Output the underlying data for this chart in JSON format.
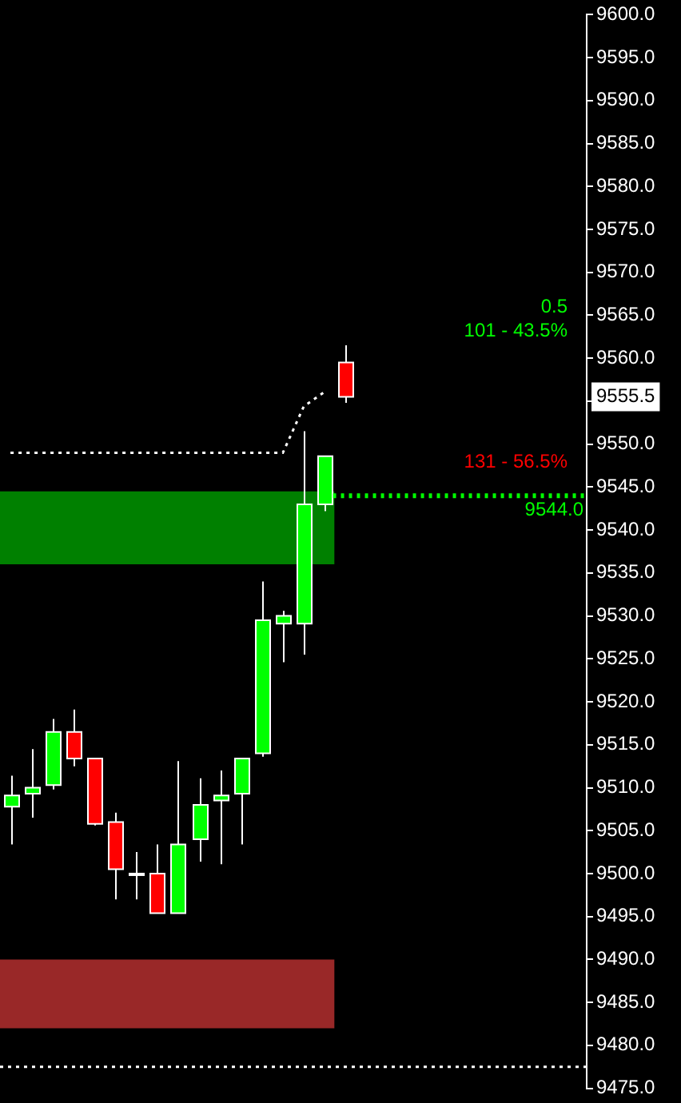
{
  "chart_data": {
    "type": "candlestick",
    "categories": [
      null,
      null,
      null,
      null,
      null,
      null,
      null,
      null,
      null,
      null,
      null,
      null,
      null,
      null,
      null,
      null,
      null,
      null,
      null,
      null,
      null,
      null,
      null,
      null,
      null,
      null,
      null,
      null
    ],
    "ohlc": [
      [
        9507.8,
        9511.4,
        9503.4,
        9509.1
      ],
      [
        9509.3,
        9514.5,
        9506.5,
        9510.0
      ],
      [
        9510.3,
        9518.0,
        9509.8,
        9516.5
      ],
      [
        9516.5,
        9519.1,
        9512.5,
        9513.4
      ],
      [
        9513.4,
        9513.4,
        9505.6,
        9505.8
      ],
      [
        9506.0,
        9507.1,
        9497.0,
        9500.5
      ],
      [
        9500.0,
        9502.5,
        9497.0,
        9500.0
      ],
      [
        9500.0,
        9503.4,
        9495.4,
        9495.4
      ],
      [
        9495.4,
        9513.1,
        9495.4,
        9503.4
      ],
      [
        9504.0,
        9511.1,
        9501.4,
        9508.0
      ],
      [
        9508.5,
        9512.0,
        9501.1,
        9509.1
      ],
      [
        9509.3,
        9513.4,
        9503.4,
        9513.4
      ],
      [
        9514.0,
        9534.0,
        9513.6,
        9529.5
      ],
      [
        9529.1,
        9530.6,
        9524.6,
        9530.0
      ],
      [
        9529.1,
        9551.5,
        9525.5,
        9543.0
      ],
      [
        9543.0,
        9548.6,
        9542.2,
        9548.6
      ],
      [
        9559.5,
        9561.5,
        9554.8,
        9555.5
      ],
      null,
      null,
      null,
      null,
      null,
      null,
      null,
      null,
      null,
      null,
      null
    ],
    "colors": [
      "#00ff00",
      "#00ff00",
      "#00ff00",
      "#ff0000",
      "#ff0000",
      "#ff0000",
      "#ffffff",
      "#ff0000",
      "#00ff00",
      "#00ff00",
      "#00ff00",
      "#00ff00",
      "#00ff00",
      "#00ff00",
      "#00ff00",
      "#00ff00",
      "#ff0000",
      null,
      null,
      null,
      null,
      null,
      null,
      null,
      null,
      null,
      null,
      null
    ],
    "series": [
      {
        "type": "line",
        "color": "#ffffff",
        "line_style": "dotted",
        "values": [
          9549,
          9549,
          9549,
          9549,
          9549,
          9549,
          9549,
          9549,
          9549,
          9549,
          9549,
          9549,
          9549,
          9549,
          9554.4,
          9556.1,
          null,
          null,
          null,
          null,
          null,
          null,
          null,
          null,
          null,
          null,
          null,
          null
        ]
      }
    ],
    "ylim": [
      9475,
      9600
    ],
    "yticks": [
      {
        "value": 9475,
        "label": "9475.0"
      },
      {
        "value": 9480,
        "label": "9480.0"
      },
      {
        "value": 9485,
        "label": "9485.0"
      },
      {
        "value": 9490,
        "label": "9490.0"
      },
      {
        "value": 9495,
        "label": "9495.0"
      },
      {
        "value": 9500,
        "label": "9500.0"
      },
      {
        "value": 9505,
        "label": "9505.0"
      },
      {
        "value": 9510,
        "label": "9510.0"
      },
      {
        "value": 9515,
        "label": "9515.0"
      },
      {
        "value": 9520,
        "label": "9520.0"
      },
      {
        "value": 9525,
        "label": "9525.0"
      },
      {
        "value": 9530,
        "label": "9530.0"
      },
      {
        "value": 9535,
        "label": "9535.0"
      },
      {
        "value": 9540,
        "label": "9540.0"
      },
      {
        "value": 9545,
        "label": "9545.0"
      },
      {
        "value": 9550,
        "label": "9550.0"
      },
      {
        "value": 9555,
        "label": null
      },
      {
        "value": 9560,
        "label": "9560.0"
      },
      {
        "value": 9565,
        "label": "9565.0"
      },
      {
        "value": 9570,
        "label": "9570.0"
      },
      {
        "value": 9575,
        "label": "9575.0"
      },
      {
        "value": 9580,
        "label": "9580.0"
      },
      {
        "value": 9585,
        "label": "9585.0"
      },
      {
        "value": 9590,
        "label": "9590.0"
      },
      {
        "value": 9595,
        "label": "9595.0"
      },
      {
        "value": 9600,
        "label": "9600.0"
      }
    ],
    "bands": [
      {
        "axis": "y",
        "from": 9536,
        "to": 9544.5,
        "color": "#008000"
      },
      {
        "axis": "y",
        "from": 9482,
        "to": 9490,
        "color": "#992828"
      }
    ],
    "ref_lines": [
      {
        "axis": "y",
        "value": 9544,
        "label": "9544.0",
        "color": "#00ff00",
        "line_style": "dotted"
      },
      {
        "axis": "y",
        "value": 9477.5,
        "color": "#ffffff",
        "line_style": "dotted"
      }
    ],
    "annotations": [
      "0.5",
      "101 - 43.5%",
      "131 - 56.5%",
      {
        "text": "9555.5",
        "y": 9555.5
      }
    ],
    "grid": false,
    "legend": false,
    "tick_labels": "y"
  }
}
